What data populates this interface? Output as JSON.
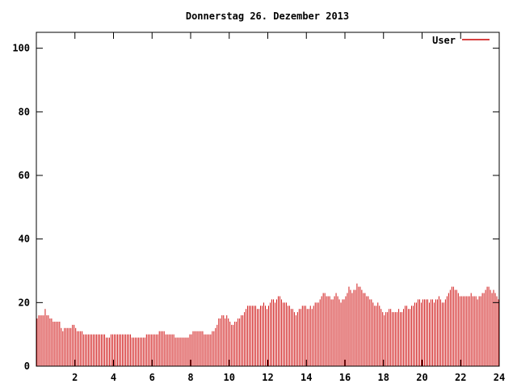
{
  "chart_data": {
    "type": "bar",
    "title": "Donnerstag 26. Dezember 2013",
    "xlabel": "",
    "ylabel": "",
    "xlim": [
      0,
      24
    ],
    "ylim": [
      0,
      105
    ],
    "x_ticks": [
      2,
      4,
      6,
      8,
      10,
      12,
      14,
      16,
      18,
      20,
      22,
      24
    ],
    "y_ticks": [
      0,
      20,
      40,
      60,
      80,
      100
    ],
    "grid": false,
    "legend_position": "top-right",
    "colors": {
      "series": "#cc0000",
      "axes": "#000000",
      "background": "#ffffff"
    },
    "series": [
      {
        "name": "User",
        "interval_minutes": 5,
        "values": [
          15,
          16,
          16,
          16,
          16,
          18,
          16,
          16,
          15,
          15,
          14,
          14,
          14,
          14,
          14,
          12,
          11,
          12,
          12,
          12,
          12,
          12,
          13,
          13,
          12,
          11,
          11,
          11,
          11,
          10,
          10,
          10,
          10,
          10,
          10,
          10,
          10,
          10,
          10,
          10,
          10,
          10,
          10,
          9,
          9,
          9,
          10,
          10,
          10,
          10,
          10,
          10,
          10,
          10,
          10,
          10,
          10,
          10,
          10,
          9,
          9,
          9,
          9,
          9,
          9,
          9,
          9,
          9,
          10,
          10,
          10,
          10,
          10,
          10,
          10,
          10,
          11,
          11,
          11,
          11,
          10,
          10,
          10,
          10,
          10,
          10,
          9,
          9,
          9,
          9,
          9,
          9,
          9,
          9,
          9,
          10,
          10,
          11,
          11,
          11,
          11,
          11,
          11,
          11,
          10,
          10,
          10,
          10,
          10,
          11,
          11,
          12,
          13,
          15,
          15,
          16,
          16,
          15,
          16,
          15,
          14,
          13,
          13,
          14,
          14,
          15,
          15,
          16,
          16,
          17,
          18,
          19,
          19,
          19,
          19,
          19,
          19,
          18,
          18,
          19,
          19,
          20,
          19,
          18,
          19,
          20,
          21,
          21,
          20,
          21,
          22,
          22,
          21,
          20,
          20,
          20,
          19,
          19,
          18,
          18,
          17,
          16,
          17,
          18,
          18,
          19,
          19,
          19,
          18,
          18,
          19,
          18,
          19,
          20,
          20,
          20,
          21,
          22,
          23,
          23,
          22,
          22,
          22,
          21,
          21,
          22,
          23,
          22,
          21,
          20,
          21,
          21,
          22,
          23,
          25,
          24,
          23,
          24,
          24,
          26,
          25,
          25,
          24,
          23,
          23,
          22,
          22,
          21,
          21,
          20,
          19,
          19,
          20,
          19,
          18,
          17,
          16,
          17,
          17,
          18,
          18,
          17,
          17,
          17,
          17,
          18,
          17,
          17,
          18,
          19,
          19,
          18,
          18,
          19,
          19,
          20,
          20,
          21,
          21,
          20,
          21,
          21,
          21,
          21,
          20,
          21,
          21,
          20,
          21,
          21,
          22,
          21,
          20,
          20,
          21,
          22,
          23,
          24,
          25,
          25,
          24,
          24,
          23,
          22,
          22,
          22,
          22,
          22,
          22,
          22,
          23,
          22,
          22,
          22,
          21,
          22,
          22,
          23,
          23,
          24,
          25,
          25,
          24,
          23,
          24,
          23,
          22,
          21
        ]
      }
    ]
  }
}
